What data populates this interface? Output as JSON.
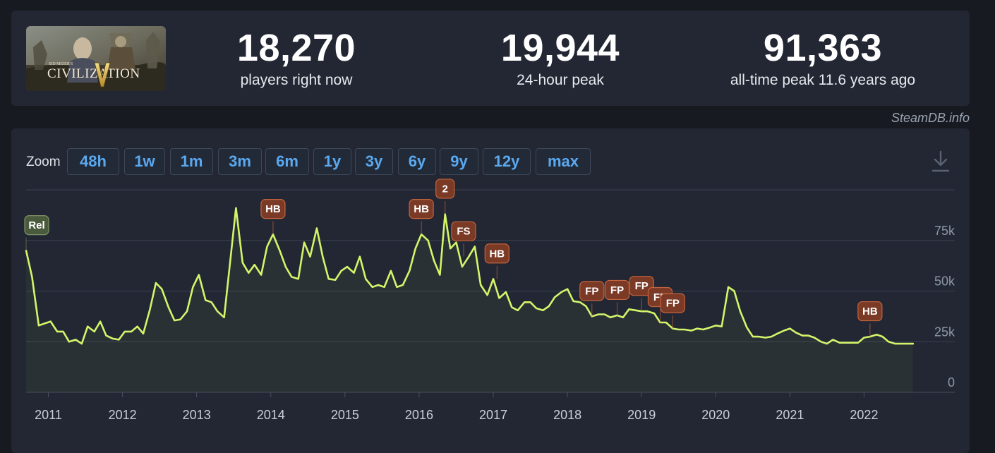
{
  "game": {
    "thumbnail_alt_text": "SID MEIER'S",
    "thumbnail_title": "CIVILIZATION"
  },
  "stats": {
    "current": {
      "value": "18,270",
      "label": "players right now"
    },
    "peak24": {
      "value": "19,944",
      "label": "24-hour peak"
    },
    "alltime": {
      "value": "91,363",
      "label": "all-time peak 11.6 years ago"
    }
  },
  "attribution": "SteamDB.info",
  "zoom": {
    "label": "Zoom",
    "options": [
      "48h",
      "1w",
      "1m",
      "3m",
      "6m",
      "1y",
      "3y",
      "6y",
      "9y",
      "12y",
      "max"
    ]
  },
  "colors": {
    "line": "#d4f56a",
    "accent_blue": "#5aa9f0",
    "flag_fill": "#7a3a26",
    "flag_border": "#c4643f",
    "release_flag_fill": "#4a5a3c"
  },
  "chart_data": {
    "type": "line",
    "ylim": [
      0,
      100000
    ],
    "yticks": [
      0,
      25000,
      50000,
      75000
    ],
    "ytick_labels": [
      "0",
      "25k",
      "50k",
      "75k"
    ],
    "xlim": [
      2010.7,
      2022.7
    ],
    "xticks": [
      "2011",
      "2012",
      "2013",
      "2014",
      "2015",
      "2016",
      "2017",
      "2018",
      "2019",
      "2020",
      "2021",
      "2022"
    ],
    "grid": true,
    "series": [
      {
        "points": [
          [
            2010.7,
            70000
          ],
          [
            2010.78,
            57000
          ],
          [
            2010.87,
            33000
          ],
          [
            2010.95,
            34000
          ],
          [
            2011.03,
            35000
          ],
          [
            2011.12,
            30000
          ],
          [
            2011.2,
            30000
          ],
          [
            2011.28,
            25000
          ],
          [
            2011.37,
            26000
          ],
          [
            2011.45,
            24000
          ],
          [
            2011.53,
            32500
          ],
          [
            2011.62,
            30000
          ],
          [
            2011.7,
            35000
          ],
          [
            2011.78,
            28000
          ],
          [
            2011.87,
            26500
          ],
          [
            2011.95,
            26000
          ],
          [
            2012.03,
            30000
          ],
          [
            2012.12,
            30000
          ],
          [
            2012.2,
            32500
          ],
          [
            2012.28,
            29000
          ],
          [
            2012.37,
            41000
          ],
          [
            2012.45,
            54000
          ],
          [
            2012.53,
            51000
          ],
          [
            2012.62,
            42000
          ],
          [
            2012.7,
            35500
          ],
          [
            2012.78,
            36000
          ],
          [
            2012.87,
            40000
          ],
          [
            2012.95,
            52000
          ],
          [
            2013.03,
            58000
          ],
          [
            2013.12,
            45500
          ],
          [
            2013.2,
            44500
          ],
          [
            2013.28,
            40000
          ],
          [
            2013.37,
            37000
          ],
          [
            2013.53,
            91000
          ],
          [
            2013.62,
            64000
          ],
          [
            2013.7,
            59000
          ],
          [
            2013.78,
            63000
          ],
          [
            2013.87,
            58000
          ],
          [
            2013.95,
            72000
          ],
          [
            2014.03,
            78000
          ],
          [
            2014.12,
            70000
          ],
          [
            2014.2,
            62000
          ],
          [
            2014.28,
            57000
          ],
          [
            2014.37,
            56000
          ],
          [
            2014.45,
            74000
          ],
          [
            2014.53,
            67000
          ],
          [
            2014.62,
            81000
          ],
          [
            2014.7,
            67000
          ],
          [
            2014.78,
            56000
          ],
          [
            2014.87,
            55500
          ],
          [
            2014.95,
            60000
          ],
          [
            2015.03,
            62000
          ],
          [
            2015.12,
            59000
          ],
          [
            2015.2,
            67000
          ],
          [
            2015.28,
            56000
          ],
          [
            2015.37,
            52000
          ],
          [
            2015.45,
            53000
          ],
          [
            2015.53,
            52000
          ],
          [
            2015.62,
            60000
          ],
          [
            2015.7,
            52000
          ],
          [
            2015.78,
            53000
          ],
          [
            2015.87,
            60000
          ],
          [
            2015.95,
            71000
          ],
          [
            2016.03,
            78000
          ],
          [
            2016.12,
            75000
          ],
          [
            2016.2,
            65000
          ],
          [
            2016.28,
            58000
          ],
          [
            2016.35,
            88000
          ],
          [
            2016.42,
            71000
          ],
          [
            2016.5,
            74000
          ],
          [
            2016.58,
            62000
          ],
          [
            2016.67,
            67000
          ],
          [
            2016.75,
            72000
          ],
          [
            2016.83,
            53000
          ],
          [
            2016.92,
            48000
          ],
          [
            2017.0,
            56000
          ],
          [
            2017.08,
            46500
          ],
          [
            2017.17,
            49500
          ],
          [
            2017.25,
            42000
          ],
          [
            2017.33,
            40500
          ],
          [
            2017.42,
            44500
          ],
          [
            2017.5,
            44500
          ],
          [
            2017.58,
            41500
          ],
          [
            2017.67,
            40500
          ],
          [
            2017.75,
            42500
          ],
          [
            2017.83,
            47000
          ],
          [
            2017.92,
            49500
          ],
          [
            2018.0,
            51000
          ],
          [
            2018.08,
            45000
          ],
          [
            2018.17,
            44500
          ],
          [
            2018.25,
            42500
          ],
          [
            2018.33,
            37500
          ],
          [
            2018.42,
            38500
          ],
          [
            2018.5,
            38500
          ],
          [
            2018.58,
            37000
          ],
          [
            2018.67,
            38000
          ],
          [
            2018.75,
            37000
          ],
          [
            2018.83,
            41000
          ],
          [
            2018.92,
            40500
          ],
          [
            2019.0,
            40000
          ],
          [
            2019.08,
            40000
          ],
          [
            2019.17,
            39000
          ],
          [
            2019.25,
            34500
          ],
          [
            2019.33,
            34500
          ],
          [
            2019.42,
            31500
          ],
          [
            2019.5,
            31000
          ],
          [
            2019.58,
            31000
          ],
          [
            2019.67,
            30500
          ],
          [
            2019.75,
            31500
          ],
          [
            2019.83,
            31000
          ],
          [
            2019.92,
            32000
          ],
          [
            2020.0,
            33000
          ],
          [
            2020.08,
            32500
          ],
          [
            2020.17,
            52000
          ],
          [
            2020.25,
            50000
          ],
          [
            2020.33,
            40000
          ],
          [
            2020.42,
            32000
          ],
          [
            2020.5,
            27500
          ],
          [
            2020.58,
            27500
          ],
          [
            2020.67,
            27000
          ],
          [
            2020.75,
            27500
          ],
          [
            2020.83,
            29000
          ],
          [
            2020.92,
            30500
          ],
          [
            2021.0,
            31500
          ],
          [
            2021.08,
            29500
          ],
          [
            2021.17,
            28000
          ],
          [
            2021.25,
            28000
          ],
          [
            2021.33,
            27000
          ],
          [
            2021.42,
            25000
          ],
          [
            2021.5,
            24000
          ],
          [
            2021.58,
            26000
          ],
          [
            2021.67,
            24500
          ],
          [
            2021.75,
            24500
          ],
          [
            2021.83,
            24500
          ],
          [
            2021.92,
            24500
          ],
          [
            2022.0,
            27000
          ],
          [
            2022.08,
            27500
          ],
          [
            2022.17,
            28500
          ],
          [
            2022.25,
            27500
          ],
          [
            2022.33,
            25000
          ],
          [
            2022.42,
            24000
          ],
          [
            2022.5,
            24000
          ],
          [
            2022.58,
            24000
          ],
          [
            2022.66,
            24000
          ]
        ]
      }
    ],
    "annotations": [
      {
        "label": "Rel",
        "x": 2010.7,
        "y": 70000,
        "kind": "release"
      },
      {
        "label": "HB",
        "x": 2014.03,
        "y": 78000,
        "kind": "event"
      },
      {
        "label": "HB",
        "x": 2016.03,
        "y": 78000,
        "kind": "event"
      },
      {
        "label": "2",
        "x": 2016.35,
        "y": 88000,
        "kind": "event"
      },
      {
        "label": "FS",
        "x": 2016.6,
        "y": 67000,
        "kind": "event"
      },
      {
        "label": "HB",
        "x": 2017.05,
        "y": 56000,
        "kind": "event"
      },
      {
        "label": "FP",
        "x": 2018.33,
        "y": 37500,
        "kind": "event"
      },
      {
        "label": "FP",
        "x": 2018.67,
        "y": 38000,
        "kind": "event"
      },
      {
        "label": "FP",
        "x": 2019.0,
        "y": 40000,
        "kind": "event"
      },
      {
        "label": "FP",
        "x": 2019.25,
        "y": 34500,
        "kind": "event"
      },
      {
        "label": "FP",
        "x": 2019.42,
        "y": 31500,
        "kind": "event"
      },
      {
        "label": "HB",
        "x": 2022.08,
        "y": 27500,
        "kind": "event"
      }
    ]
  }
}
